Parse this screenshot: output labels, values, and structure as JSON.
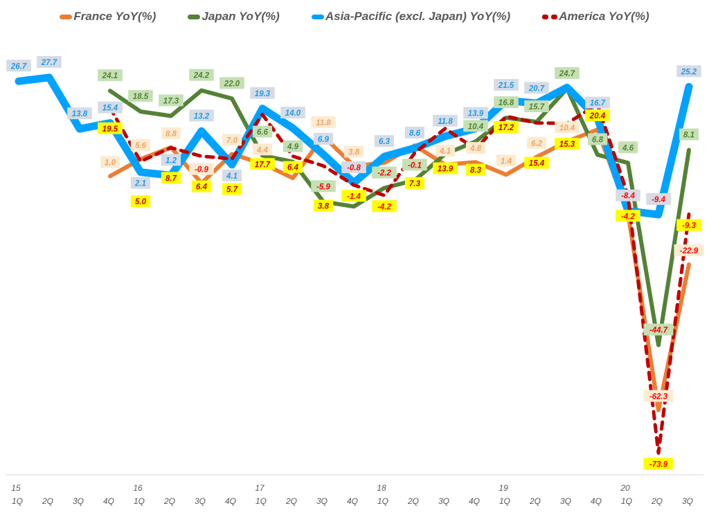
{
  "chart_data": {
    "type": "line",
    "categories": [
      "15 1Q",
      "2Q",
      "3Q",
      "4Q",
      "16 1Q",
      "2Q",
      "3Q",
      "4Q",
      "17 1Q",
      "2Q",
      "3Q",
      "4Q",
      "18 1Q",
      "2Q",
      "3Q",
      "4Q",
      "19 1Q",
      "2Q",
      "3Q",
      "4Q",
      "20 1Q",
      "2Q",
      "3Q"
    ],
    "x_ticks": {
      "years": [
        "15",
        "",
        "",
        "",
        "16",
        "",
        "",
        "",
        "17",
        "",
        "",
        "",
        "18",
        "",
        "",
        "",
        "19",
        "",
        "",
        "",
        "20",
        "",
        ""
      ],
      "quarters": [
        "1Q",
        "2Q",
        "3Q",
        "4Q",
        "1Q",
        "2Q",
        "3Q",
        "4Q",
        "1Q",
        "2Q",
        "3Q",
        "4Q",
        "1Q",
        "2Q",
        "3Q",
        "4Q",
        "1Q",
        "2Q",
        "3Q",
        "4Q",
        "1Q",
        "2Q",
        "3Q"
      ]
    },
    "ylim": [
      -80,
      35
    ],
    "grid": false,
    "legend_position": "top",
    "series": [
      {
        "name": "France YoY(%)",
        "color": "#ed7d31",
        "label_bg": "#fdebd1",
        "label_color": "#f4a460",
        "dashed": false,
        "values": [
          null,
          null,
          null,
          1.0,
          5.6,
          8.8,
          -0.9,
          7.0,
          4.4,
          0.5,
          11.8,
          3.8,
          4.6,
          9.3,
          4.1,
          4.8,
          1.4,
          6.2,
          10.4,
          13.6,
          -9.0,
          -62.3,
          -22.9
        ],
        "labeled": [
          false,
          false,
          false,
          true,
          true,
          true,
          true,
          true,
          true,
          false,
          true,
          true,
          false,
          false,
          true,
          true,
          true,
          true,
          true,
          false,
          false,
          true,
          true
        ]
      },
      {
        "name": "Japan YoY(%)",
        "color": "#548235",
        "label_bg": "#c5e0b4",
        "label_color": "#548235",
        "dashed": false,
        "values": [
          null,
          null,
          null,
          24.1,
          18.5,
          17.3,
          24.2,
          22.0,
          6.6,
          4.9,
          -5.9,
          -7.2,
          -2.2,
          -0.1,
          7.0,
          10.4,
          16.8,
          15.7,
          24.7,
          6.8,
          4.6,
          -44.7,
          8.1
        ],
        "labeled": [
          false,
          false,
          false,
          true,
          true,
          true,
          true,
          true,
          true,
          true,
          true,
          false,
          true,
          true,
          false,
          true,
          true,
          true,
          true,
          true,
          true,
          true,
          true
        ]
      },
      {
        "name": "Asia-Pacific (excl. Japan) YoY(%)",
        "color": "#00a2ff",
        "label_bg": "#d6dce5",
        "label_color": "#1e9bf0",
        "dashed": false,
        "values": [
          26.7,
          27.7,
          13.8,
          15.4,
          2.1,
          1.2,
          13.2,
          4.1,
          19.3,
          14.0,
          6.9,
          -0.8,
          6.3,
          8.6,
          11.8,
          13.9,
          21.5,
          20.7,
          25.0,
          16.7,
          -8.4,
          -9.4,
          25.2
        ],
        "labeled": [
          true,
          true,
          true,
          true,
          true,
          true,
          true,
          true,
          true,
          true,
          true,
          true,
          true,
          true,
          true,
          true,
          true,
          true,
          false,
          true,
          true,
          true,
          true
        ]
      },
      {
        "name": "America YoY(%)",
        "color": "#c00000",
        "label_bg": "#ffff00",
        "label_color": "#c00000",
        "dashed": true,
        "values": [
          null,
          null,
          null,
          19.5,
          5.0,
          8.7,
          6.4,
          5.7,
          17.7,
          6.4,
          3.8,
          -1.4,
          -4.2,
          7.3,
          13.9,
          8.3,
          17.2,
          15.4,
          15.3,
          20.4,
          -4.2,
          -73.9,
          -9.3
        ],
        "labeled": [
          false,
          false,
          false,
          true,
          true,
          true,
          true,
          true,
          true,
          true,
          true,
          true,
          true,
          true,
          true,
          true,
          true,
          true,
          true,
          true,
          true,
          true,
          true
        ]
      }
    ],
    "negative_label_color": "#ff0000"
  }
}
